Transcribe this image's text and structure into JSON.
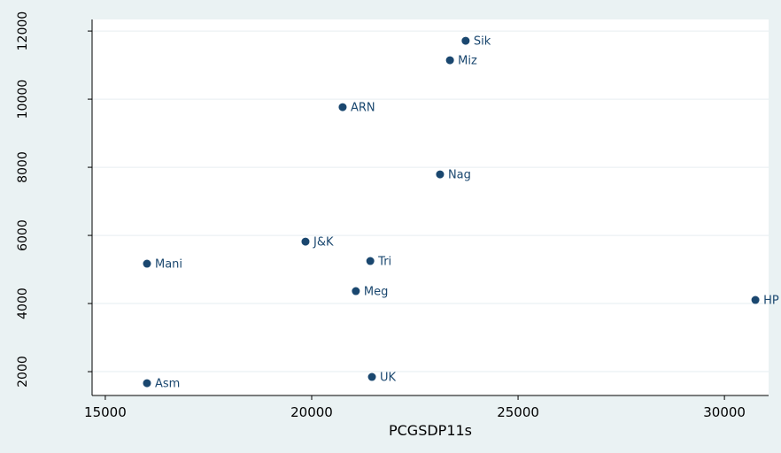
{
  "chart_data": {
    "type": "scatter",
    "x_label": "PCGSDP11s",
    "color": "#1a476f",
    "grid": true,
    "labels": [
      "Sik",
      "Miz",
      "ARN",
      "Nag",
      "J&K",
      "Mani",
      "Tri",
      "Meg",
      "HP",
      "Asm",
      "UK"
    ],
    "x": [
      23730,
      23350,
      20750,
      23110,
      19850,
      16010,
      21420,
      21070,
      30750,
      16010,
      21460
    ],
    "values": [
      11714,
      11143,
      9766,
      7792,
      5818,
      5169,
      5247,
      4364,
      4104,
      1662,
      1844
    ],
    "xlim": [
      14680,
      31070
    ],
    "ylim": [
      1300,
      12340
    ],
    "xticks": [
      15000,
      20000,
      25000,
      30000
    ],
    "yticks": [
      2000,
      4000,
      6000,
      8000,
      10000,
      12000
    ]
  }
}
